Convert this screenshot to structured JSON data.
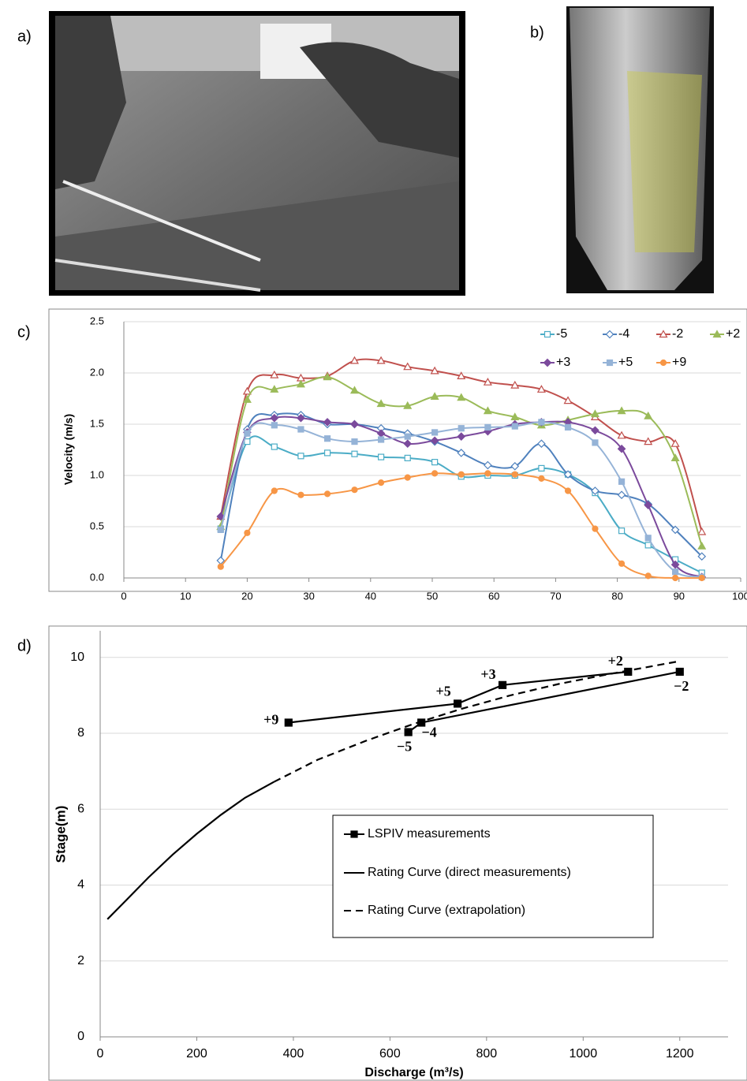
{
  "panels": {
    "a": "a)",
    "b": "b)",
    "c": "c)",
    "d": "d)"
  },
  "chart_data": [
    {
      "type": "line",
      "ylabel": "Velocity (m/s)",
      "smooth": true,
      "grid": true,
      "legend": "top-right",
      "x": [
        15.7,
        20,
        24.4,
        28.7,
        33,
        37.4,
        41.7,
        46,
        50.4,
        54.7,
        59,
        63.4,
        67.7,
        72,
        76.4,
        80.7,
        85,
        89.4,
        93.7
      ],
      "xlim": [
        0,
        100
      ],
      "xticks": [
        0,
        10,
        20,
        30,
        40,
        50,
        60,
        70,
        80,
        90,
        100
      ],
      "ylim": [
        0,
        2.5
      ],
      "yticks": [
        {
          "value": 0,
          "label": "0.0"
        },
        0.5,
        {
          "value": 1,
          "label": "1.0"
        },
        1.5,
        {
          "value": 2,
          "label": "2.0"
        },
        2.5
      ],
      "series": [
        {
          "name": "-5",
          "color": "#4bacc6",
          "marker": "square-open",
          "values": [
            0.48,
            1.33,
            1.28,
            1.19,
            1.22,
            1.21,
            1.18,
            1.17,
            1.13,
            0.99,
            1.0,
            1.0,
            1.07,
            1.01,
            0.83,
            0.46,
            0.32,
            0.18,
            0.05
          ]
        },
        {
          "name": "-4",
          "color": "#4f81bd",
          "marker": "diamond-open",
          "values": [
            0.17,
            1.45,
            1.59,
            1.59,
            1.5,
            1.5,
            1.46,
            1.41,
            1.33,
            1.22,
            1.1,
            1.09,
            1.31,
            1.01,
            0.85,
            0.81,
            0.72,
            0.47,
            0.21
          ]
        },
        {
          "name": "-2",
          "color": "#c0504d",
          "marker": "triangle-open",
          "values": [
            0.6,
            1.82,
            1.98,
            1.95,
            1.97,
            2.12,
            2.12,
            2.06,
            2.02,
            1.97,
            1.91,
            1.88,
            1.84,
            1.73,
            1.57,
            1.39,
            1.33,
            1.31,
            0.45
          ]
        },
        {
          "name": "+2",
          "color": "#9bbb59",
          "marker": "triangle",
          "values": [
            0.5,
            1.74,
            1.84,
            1.89,
            1.96,
            1.83,
            1.7,
            1.68,
            1.77,
            1.76,
            1.63,
            1.57,
            1.49,
            1.54,
            1.6,
            1.63,
            1.58,
            1.17,
            0.31
          ]
        },
        {
          "name": "+3",
          "color": "#7b4a9c",
          "marker": "diamond",
          "values": [
            0.6,
            1.42,
            1.56,
            1.56,
            1.52,
            1.5,
            1.41,
            1.31,
            1.34,
            1.38,
            1.43,
            1.5,
            1.52,
            1.52,
            1.44,
            1.26,
            0.71,
            0.13,
            0.01
          ]
        },
        {
          "name": "+5",
          "color": "#95b3d7",
          "marker": "square",
          "values": [
            0.47,
            1.41,
            1.49,
            1.45,
            1.36,
            1.33,
            1.35,
            1.38,
            1.42,
            1.46,
            1.47,
            1.48,
            1.52,
            1.47,
            1.32,
            0.94,
            0.39,
            0.06,
            0.01
          ]
        },
        {
          "name": "+9",
          "color": "#f79646",
          "marker": "circle",
          "values": [
            0.11,
            0.44,
            0.85,
            0.81,
            0.82,
            0.86,
            0.93,
            0.98,
            1.02,
            1.01,
            1.02,
            1.01,
            0.97,
            0.85,
            0.48,
            0.14,
            0.02,
            0.0,
            0.0
          ]
        }
      ]
    },
    {
      "type": "line",
      "xlabel": "Discharge (m³/s)",
      "ylabel": "Stage(m)",
      "smooth": false,
      "grid": true,
      "legend": "center-right",
      "xlim": [
        0,
        1300
      ],
      "xticks": [
        0,
        200,
        400,
        600,
        800,
        1000,
        1200
      ],
      "ylim": [
        0,
        10.7
      ],
      "yticks": [
        0,
        2,
        4,
        6,
        8,
        10
      ],
      "series": [
        {
          "name": "LSPIV measurements",
          "color": "#000000",
          "marker": "square",
          "x": [
            390,
            740,
            833,
            1093,
            null,
            638,
            665,
            1200
          ],
          "values": [
            8.28,
            8.78,
            9.27,
            9.62,
            null,
            8.03,
            8.28,
            9.62
          ],
          "point_labels": [
            "+9",
            "+5",
            "+3",
            "+2",
            null,
            "−5",
            "−4",
            "−2"
          ]
        },
        {
          "name": "Rating Curve (direct measurements)",
          "color": "#000000",
          "x": [
            15,
            50,
            100,
            150,
            200,
            250,
            300,
            360
          ],
          "values": [
            3.1,
            3.55,
            4.2,
            4.8,
            5.35,
            5.85,
            6.3,
            6.72
          ]
        },
        {
          "name": "Rating Curve (extrapolation)",
          "color": "#000000",
          "dash": true,
          "x": [
            360,
            450,
            550,
            650,
            750,
            850,
            950,
            1050,
            1200
          ],
          "values": [
            6.72,
            7.3,
            7.8,
            8.25,
            8.65,
            9.0,
            9.3,
            9.55,
            9.9
          ]
        }
      ]
    }
  ]
}
